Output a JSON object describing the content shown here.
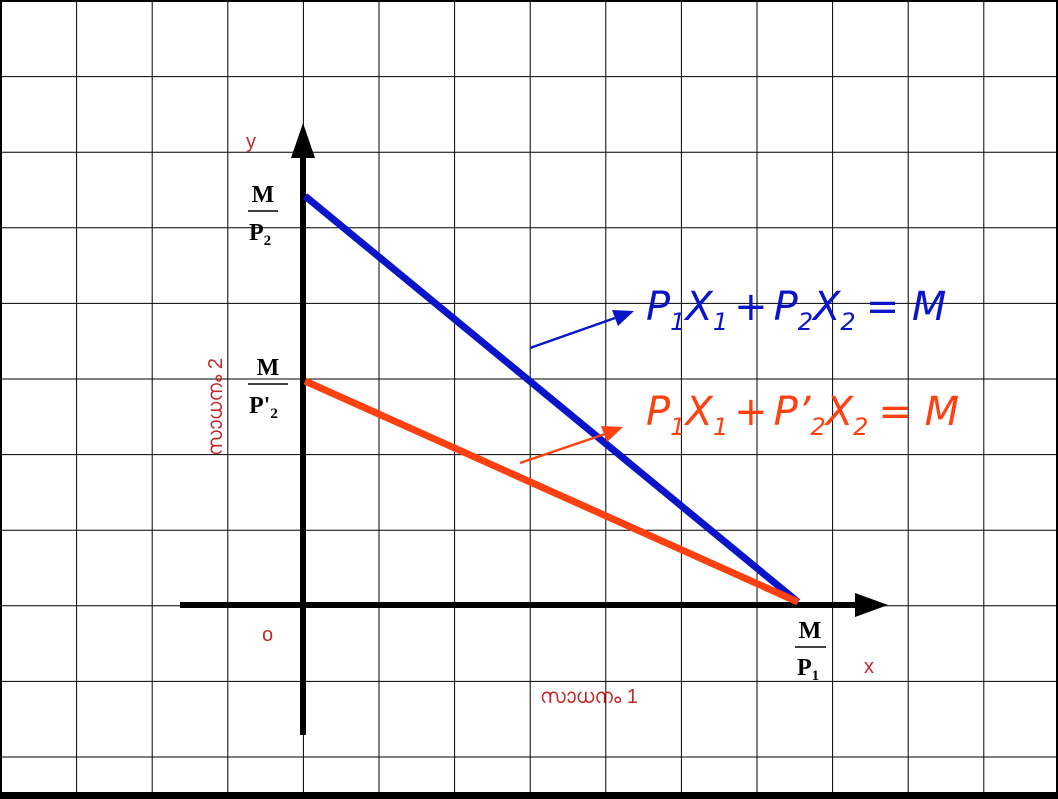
{
  "axes": {
    "x_label": "x",
    "y_label": "y",
    "origin_label": "o",
    "x_title": "സാധനം 1",
    "y_title": "സാധനം 2"
  },
  "intercepts": {
    "x_top": "M",
    "x_bottom": "P",
    "x_bottom_sub": "1",
    "y_high_top": "M",
    "y_high_bottom": "P",
    "y_high_sub": "2",
    "y_low_top": "M",
    "y_low_bottom": "P'",
    "y_low_sub": "2"
  },
  "equations": {
    "blue": {
      "p1": "P",
      "s1": "1",
      "x1": "X",
      "t1": "1",
      "plus": "+",
      "p2": "P",
      "s2": "2",
      "x2": "X",
      "t2": "2",
      "rhs": "= M"
    },
    "red": {
      "p1": "P",
      "s1": "1",
      "x1": "X",
      "t1": "1",
      "plus": "+",
      "p2": "P’",
      "s2": "2",
      "x2": "X",
      "t2": "2",
      "rhs": "= M"
    }
  },
  "colors": {
    "background": "#ffffff",
    "grid": "#000000",
    "axis": "#000000",
    "budget_line_original": "#0a14c8",
    "budget_line_new": "#ff4010",
    "label_red": "#c0282a"
  }
}
